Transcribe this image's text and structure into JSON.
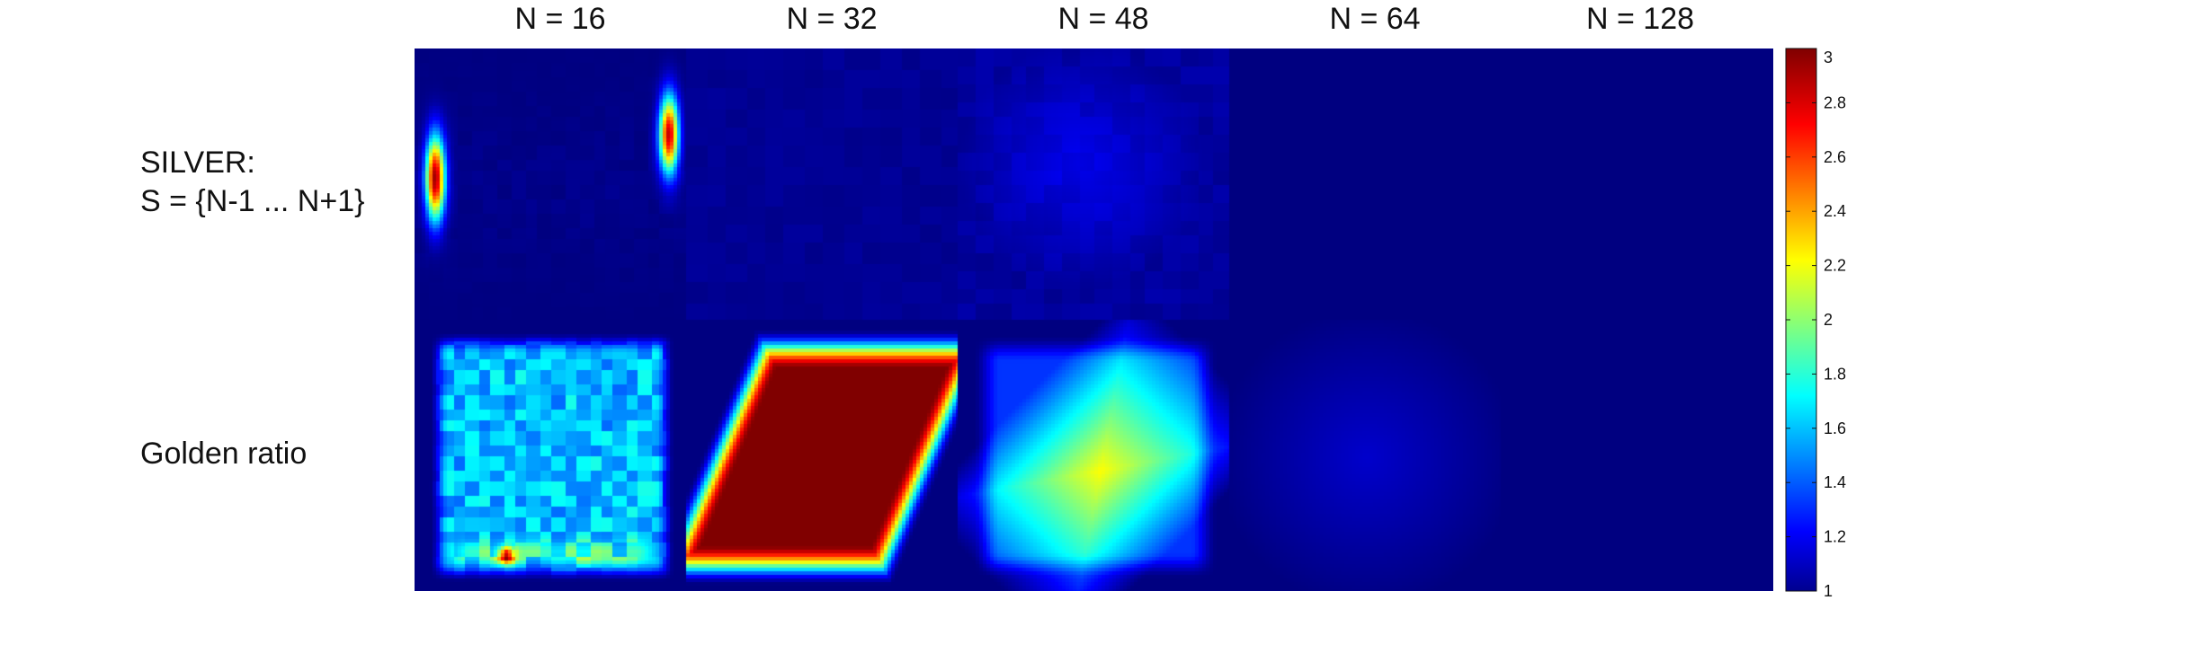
{
  "chart_data": {
    "type": "heatmap",
    "columns": [
      "N = 16",
      "N = 32",
      "N = 48",
      "N = 64",
      "N = 128"
    ],
    "rows": [
      {
        "label_lines": [
          "SILVER:",
          "S = {N-1 ... N+1}"
        ],
        "cells": [
          {
            "base": 1.0,
            "pattern": "edge-streaks",
            "peak": 2.95
          },
          {
            "base": 1.02,
            "pattern": "faint",
            "peak": 1.08
          },
          {
            "base": 1.03,
            "pattern": "soft-blob",
            "peak": 1.2
          },
          {
            "base": 1.0,
            "pattern": "flat",
            "peak": 1.0
          },
          {
            "base": 1.0,
            "pattern": "flat",
            "peak": 1.0
          }
        ]
      },
      {
        "label_lines": [
          "Golden ratio"
        ],
        "cells": [
          {
            "base": 1.0,
            "pattern": "noisy-square",
            "peak": 1.75
          },
          {
            "base": 1.0,
            "pattern": "saturated-diamond",
            "peak": 3.0
          },
          {
            "base": 1.0,
            "pattern": "diamond",
            "peak": 2.25
          },
          {
            "base": 1.0,
            "pattern": "soft-disk",
            "peak": 1.15
          },
          {
            "base": 1.0,
            "pattern": "flat",
            "peak": 1.0
          }
        ]
      }
    ],
    "colorbar": {
      "colormap": "jet",
      "range": [
        1,
        3
      ],
      "ticks": [
        "1",
        "1.2",
        "1.4",
        "1.6",
        "1.8",
        "2",
        "2.2",
        "2.4",
        "2.6",
        "2.8",
        "3"
      ]
    }
  }
}
